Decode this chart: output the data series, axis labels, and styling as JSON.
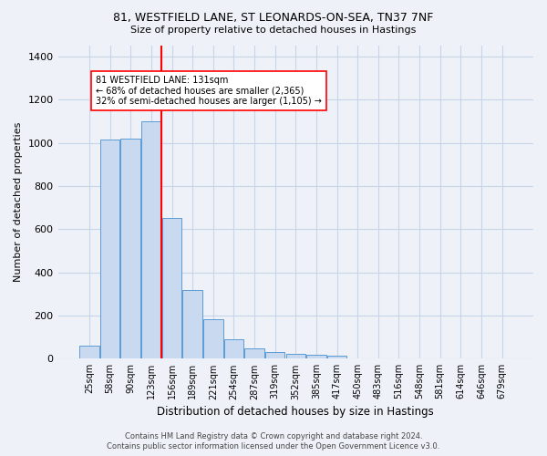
{
  "title_line1": "81, WESTFIELD LANE, ST LEONARDS-ON-SEA, TN37 7NF",
  "title_line2": "Size of property relative to detached houses in Hastings",
  "xlabel": "Distribution of detached houses by size in Hastings",
  "ylabel": "Number of detached properties",
  "bar_labels": [
    "25sqm",
    "58sqm",
    "90sqm",
    "123sqm",
    "156sqm",
    "189sqm",
    "221sqm",
    "254sqm",
    "287sqm",
    "319sqm",
    "352sqm",
    "385sqm",
    "417sqm",
    "450sqm",
    "483sqm",
    "516sqm",
    "548sqm",
    "581sqm",
    "614sqm",
    "646sqm",
    "679sqm"
  ],
  "bar_values": [
    60,
    1015,
    1020,
    1100,
    650,
    320,
    185,
    90,
    47,
    30,
    22,
    20,
    12,
    0,
    0,
    0,
    0,
    0,
    0,
    0,
    0
  ],
  "bar_color": "#c9d9f0",
  "bar_edgecolor": "#5b9bd5",
  "vline_x": 3.5,
  "vline_color": "red",
  "annotation_text": "81 WESTFIELD LANE: 131sqm\n← 68% of detached houses are smaller (2,365)\n32% of semi-detached houses are larger (1,105) →",
  "annotation_box_color": "white",
  "annotation_box_edgecolor": "red",
  "ylim": [
    0,
    1450
  ],
  "yticks": [
    0,
    200,
    400,
    600,
    800,
    1000,
    1200,
    1400
  ],
  "grid_color": "#c8d4e8",
  "background_color": "#eef2f8",
  "footer_line1": "Contains HM Land Registry data © Crown copyright and database right 2024.",
  "footer_line2": "Contains public sector information licensed under the Open Government Licence v3.0."
}
